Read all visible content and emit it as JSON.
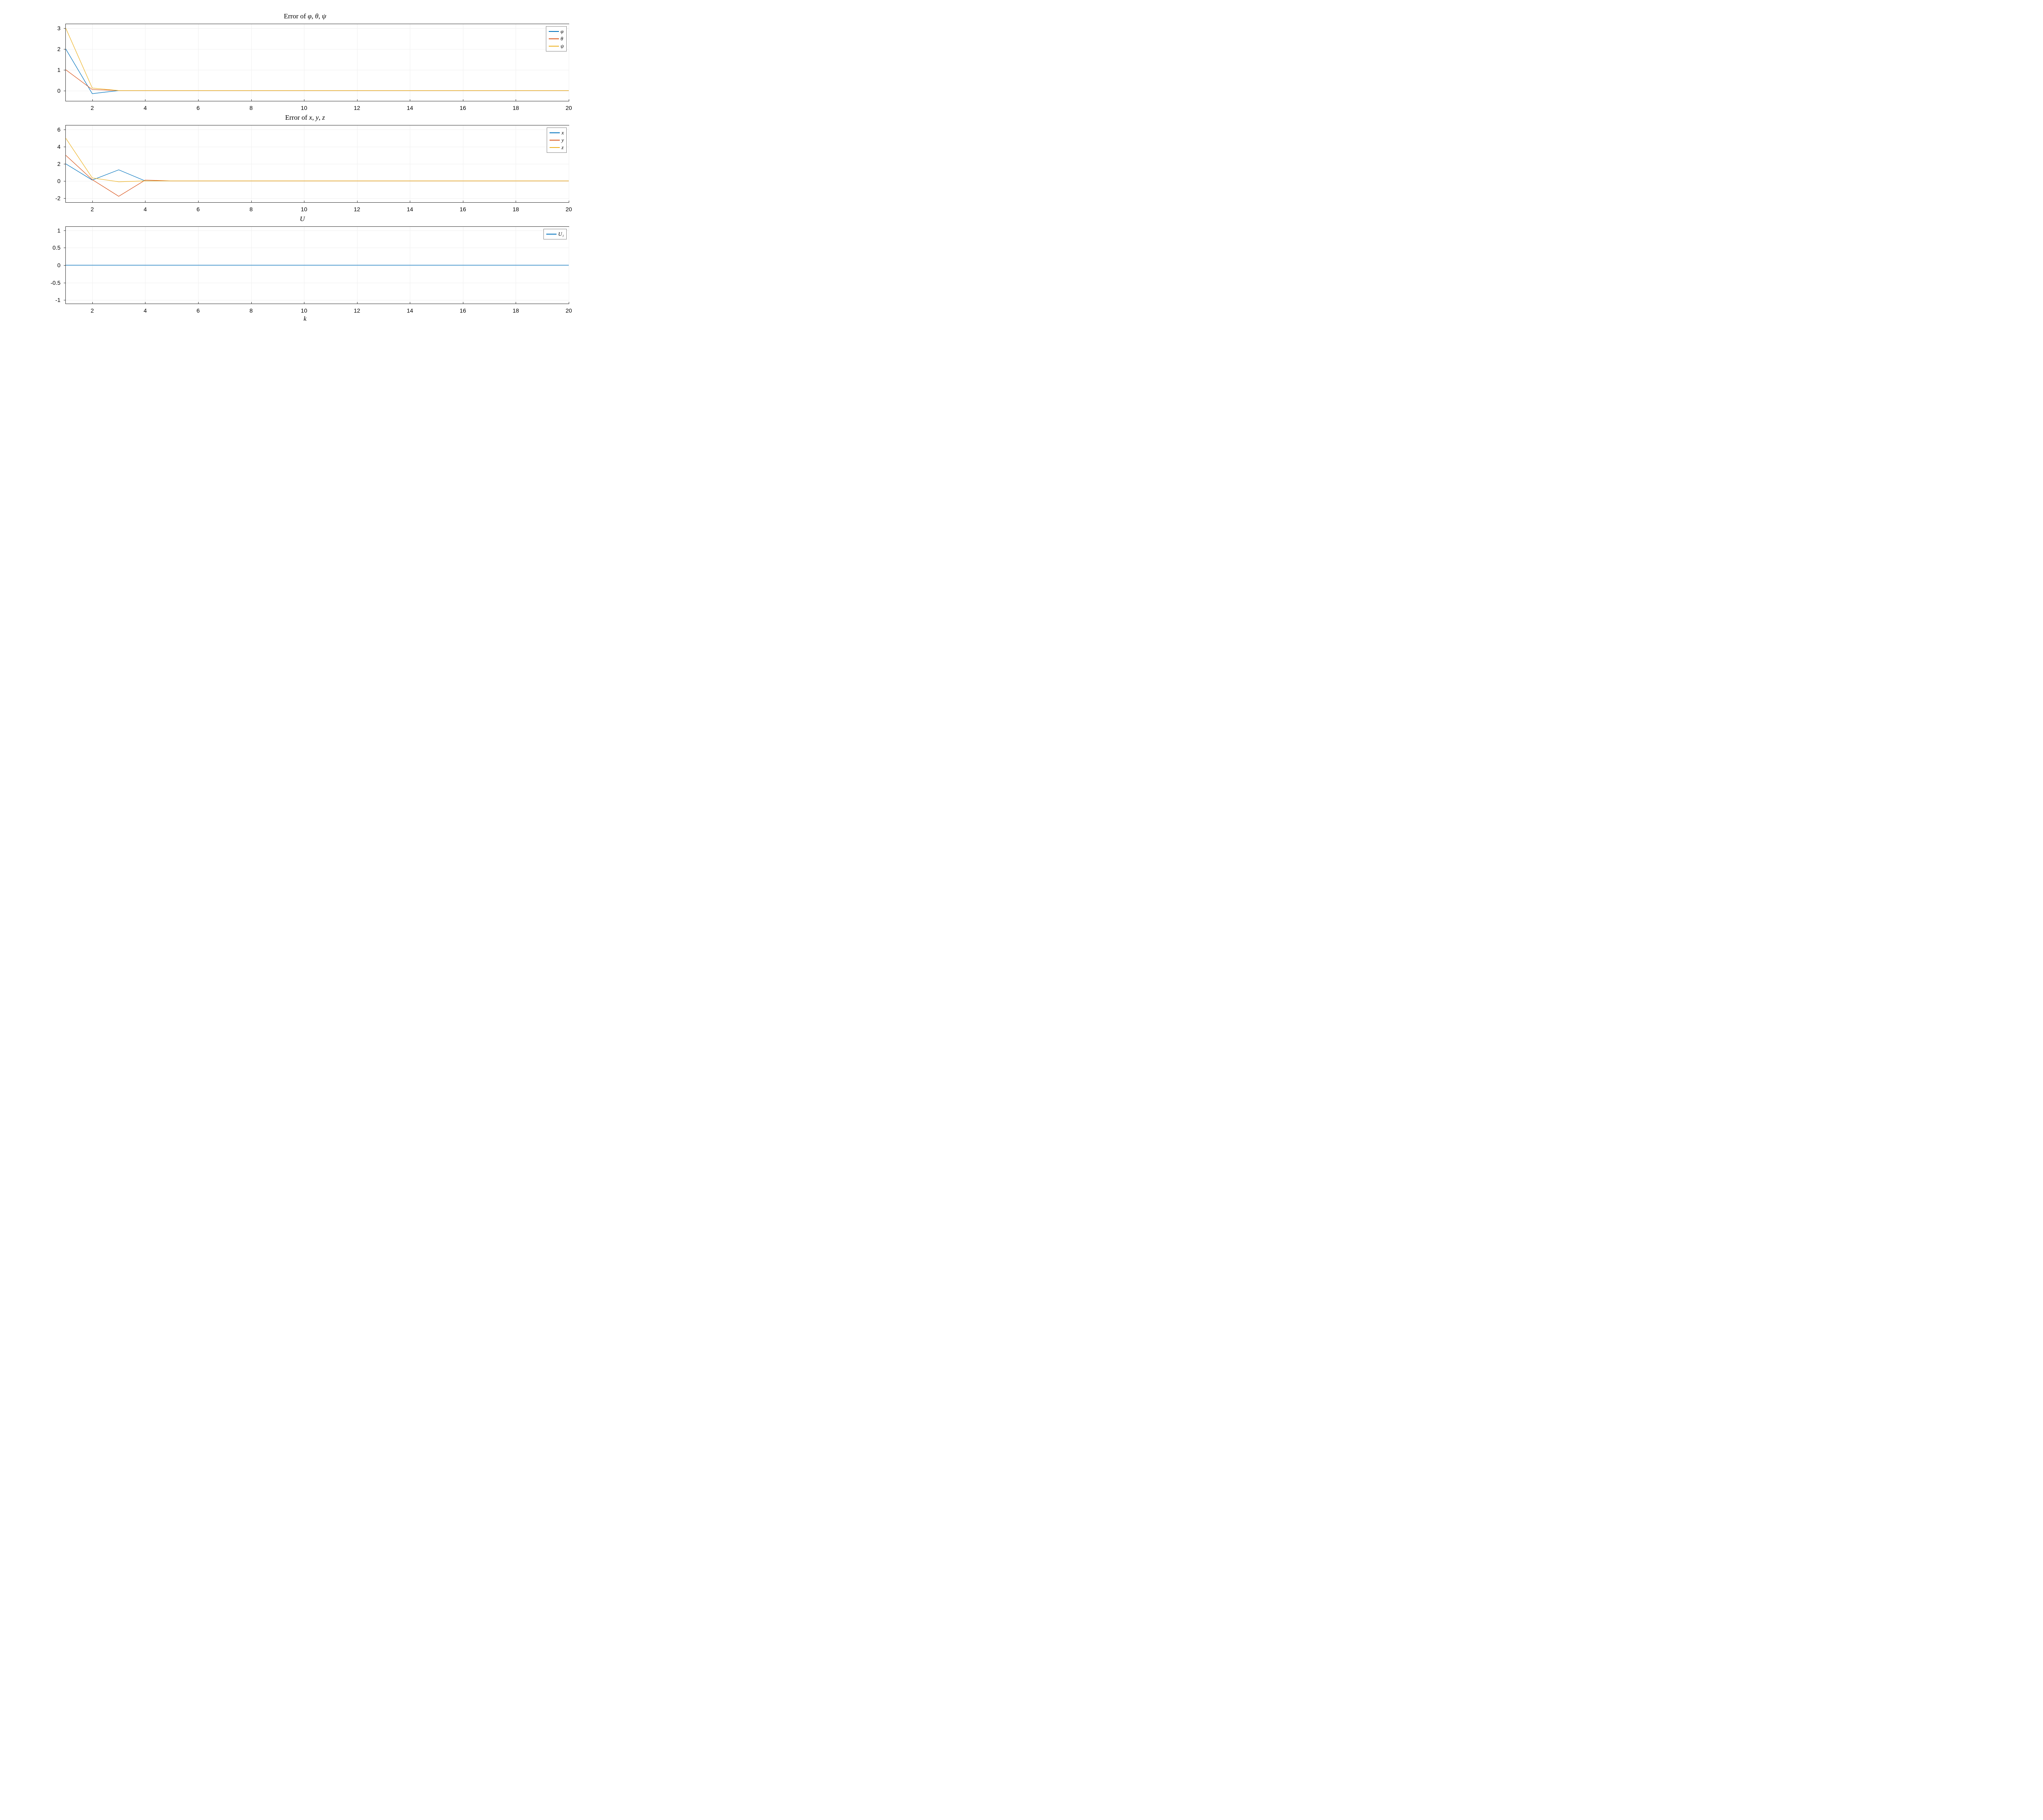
{
  "chart1": {
    "title": "Error of φ, θ, ψ",
    "type": "line",
    "xlim": [
      1,
      20
    ],
    "ylim": [
      -0.5,
      3.2
    ],
    "yticks": [
      0,
      1,
      2,
      3
    ],
    "xticks": [
      2,
      4,
      6,
      8,
      10,
      12,
      14,
      16,
      18,
      20
    ],
    "grid_color": "#f0f0f0",
    "background_color": "#ffffff",
    "series": [
      {
        "name": "phi",
        "label": "φ",
        "color": "#0072bd",
        "x": [
          1,
          2,
          3,
          4,
          5,
          6,
          7,
          8,
          9,
          10,
          11,
          12,
          13,
          14,
          15,
          16,
          17,
          18,
          19,
          20
        ],
        "y": [
          2.0,
          -0.15,
          0.0,
          0.0,
          0.0,
          0.0,
          0.0,
          0.0,
          0.0,
          0.0,
          0.0,
          0.0,
          0.0,
          0.0,
          0.0,
          0.0,
          0.0,
          0.0,
          0.0,
          0.0
        ]
      },
      {
        "name": "theta",
        "label": "θ",
        "color": "#d95319",
        "x": [
          1,
          2,
          3,
          4,
          5,
          6,
          7,
          8,
          9,
          10,
          11,
          12,
          13,
          14,
          15,
          16,
          17,
          18,
          19,
          20
        ],
        "y": [
          1.0,
          0.05,
          0.0,
          0.0,
          0.0,
          0.0,
          0.0,
          0.0,
          0.0,
          0.0,
          0.0,
          0.0,
          0.0,
          0.0,
          0.0,
          0.0,
          0.0,
          0.0,
          0.0,
          0.0
        ]
      },
      {
        "name": "psi",
        "label": "ψ",
        "color": "#edb120",
        "x": [
          1,
          2,
          3,
          4,
          5,
          6,
          7,
          8,
          9,
          10,
          11,
          12,
          13,
          14,
          15,
          16,
          17,
          18,
          19,
          20
        ],
        "y": [
          3.0,
          0.12,
          0.0,
          0.0,
          0.0,
          0.0,
          0.0,
          0.0,
          0.0,
          0.0,
          0.0,
          0.0,
          0.0,
          0.0,
          0.0,
          0.0,
          0.0,
          0.0,
          0.0,
          0.0
        ]
      }
    ]
  },
  "chart2": {
    "title": "Error of x, y, z",
    "type": "line",
    "xlim": [
      1,
      20
    ],
    "ylim": [
      -2.5,
      6.5
    ],
    "yticks": [
      -2,
      0,
      2,
      4,
      6
    ],
    "xticks": [
      2,
      4,
      6,
      8,
      10,
      12,
      14,
      16,
      18,
      20
    ],
    "grid_color": "#f0f0f0",
    "background_color": "#ffffff",
    "series": [
      {
        "name": "x",
        "label": "x",
        "color": "#0072bd",
        "x": [
          1,
          2,
          3,
          4,
          5,
          6,
          7,
          8,
          9,
          10,
          11,
          12,
          13,
          14,
          15,
          16,
          17,
          18,
          19,
          20
        ],
        "y": [
          2.0,
          0.1,
          1.3,
          0.0,
          0.0,
          0.0,
          0.0,
          0.0,
          0.0,
          0.0,
          0.0,
          0.0,
          0.0,
          0.0,
          0.0,
          0.0,
          0.0,
          0.0,
          0.0,
          0.0
        ]
      },
      {
        "name": "y",
        "label": "y",
        "color": "#d95319",
        "x": [
          1,
          2,
          3,
          4,
          5,
          6,
          7,
          8,
          9,
          10,
          11,
          12,
          13,
          14,
          15,
          16,
          17,
          18,
          19,
          20
        ],
        "y": [
          3.0,
          0.15,
          -1.8,
          0.1,
          0.0,
          0.0,
          0.0,
          0.0,
          0.0,
          0.0,
          0.0,
          0.0,
          0.0,
          0.0,
          0.0,
          0.0,
          0.0,
          0.0,
          0.0,
          0.0
        ]
      },
      {
        "name": "z",
        "label": "z",
        "color": "#edb120",
        "x": [
          1,
          2,
          3,
          4,
          5,
          6,
          7,
          8,
          9,
          10,
          11,
          12,
          13,
          14,
          15,
          16,
          17,
          18,
          19,
          20
        ],
        "y": [
          5.0,
          0.35,
          -0.1,
          0.0,
          0.0,
          0.0,
          0.0,
          0.0,
          0.0,
          0.0,
          0.0,
          0.0,
          0.0,
          0.0,
          0.0,
          0.0,
          0.0,
          0.0,
          0.0,
          0.0
        ]
      }
    ]
  },
  "chart3": {
    "title": "U⃗",
    "type": "line",
    "xlim": [
      1,
      20
    ],
    "ylim": [
      -1.1,
      1.1
    ],
    "yticks": [
      -1,
      -0.5,
      0,
      0.5,
      1
    ],
    "xticks": [
      2,
      4,
      6,
      8,
      10,
      12,
      14,
      16,
      18,
      20
    ],
    "xlabel": "k",
    "grid_color": "#f0f0f0",
    "background_color": "#ffffff",
    "series": [
      {
        "name": "U1",
        "label": "U₁",
        "color": "#0072bd",
        "x": [
          1,
          2,
          3,
          4,
          5,
          6,
          7,
          8,
          9,
          10,
          11,
          12,
          13,
          14,
          15,
          16,
          17,
          18,
          19,
          20
        ],
        "y": [
          0.0,
          0.0,
          0.0,
          0.0,
          0.0,
          0.0,
          0.0,
          0.0,
          0.0,
          0.0,
          0.0,
          0.0,
          0.0,
          0.0,
          0.0,
          0.0,
          0.0,
          0.0,
          0.0,
          0.0
        ]
      }
    ]
  },
  "line_width": 1.2,
  "tick_fontsize": 14,
  "title_fontsize": 17,
  "watermark": ""
}
